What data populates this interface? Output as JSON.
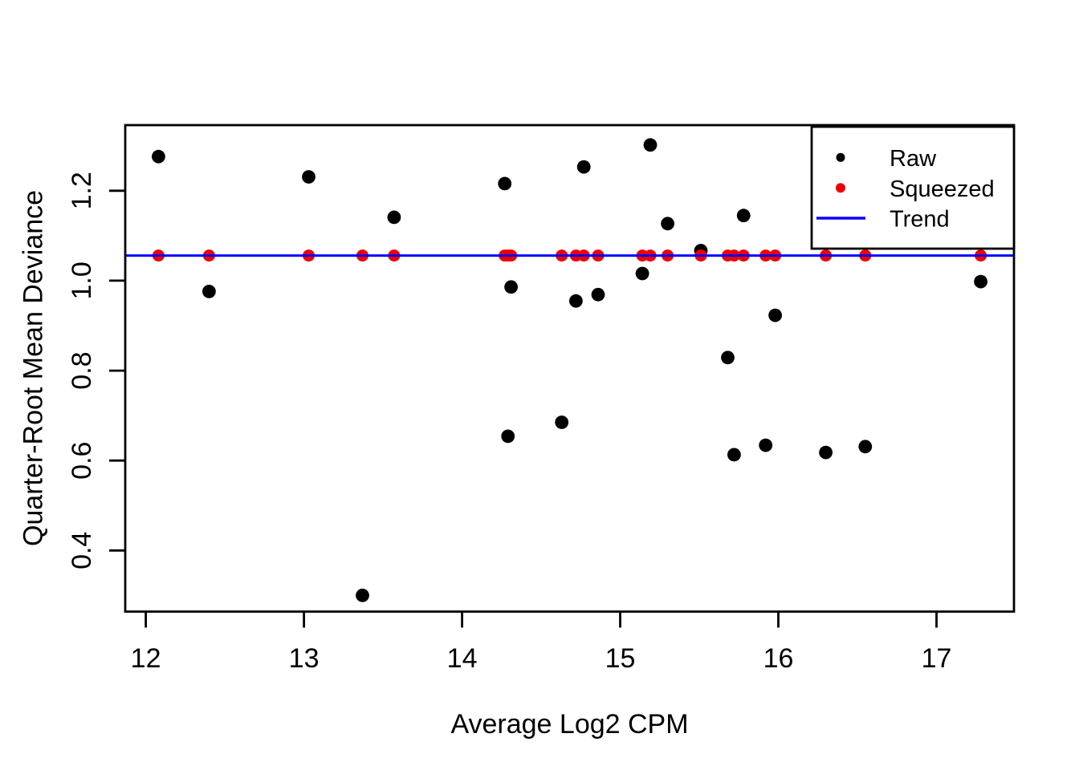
{
  "chart_data": {
    "type": "scatter",
    "title": "",
    "xlabel": "Average Log2 CPM",
    "ylabel": "Quarter-Root Mean Deviance",
    "xlim": [
      11.87,
      17.49
    ],
    "ylim": [
      0.264,
      1.346
    ],
    "x_ticks": [
      12,
      13,
      14,
      15,
      16,
      17
    ],
    "y_ticks": [
      0.4,
      0.6,
      0.8,
      1.0,
      1.2
    ],
    "x_tick_labels": [
      "12",
      "13",
      "14",
      "15",
      "16",
      "17"
    ],
    "y_tick_labels": [
      "0.4",
      "0.6",
      "0.8",
      "1.0",
      "1.2"
    ],
    "grid": false,
    "x": [
      12.08,
      12.4,
      13.03,
      13.37,
      13.57,
      14.27,
      14.29,
      14.31,
      14.63,
      14.72,
      14.77,
      14.86,
      15.14,
      15.19,
      15.3,
      15.51,
      15.68,
      15.72,
      15.78,
      15.92,
      15.98,
      16.3,
      16.55,
      17.28
    ],
    "series": [
      {
        "name": "Raw",
        "color": "#000000",
        "marker_radius": 8.4,
        "values": [
          1.276,
          0.976,
          1.231,
          0.3,
          1.141,
          1.216,
          0.654,
          0.986,
          0.685,
          0.955,
          1.253,
          0.969,
          1.016,
          1.302,
          1.127,
          1.067,
          0.829,
          0.613,
          1.145,
          0.634,
          0.923,
          0.618,
          0.631,
          0.998
        ]
      },
      {
        "name": "Squeezed",
        "color": "#EE0000",
        "marker_radius": 7.5,
        "values": [
          1.056,
          1.056,
          1.056,
          1.056,
          1.056,
          1.056,
          1.056,
          1.056,
          1.056,
          1.056,
          1.056,
          1.056,
          1.056,
          1.056,
          1.056,
          1.056,
          1.056,
          1.056,
          1.056,
          1.056,
          1.056,
          1.056,
          1.056,
          1.056
        ]
      }
    ],
    "trend": {
      "label": "Trend",
      "y": 1.056,
      "color": "#0000FF"
    },
    "legend": {
      "position": "top-right",
      "items": [
        {
          "label": "Raw",
          "marker": "dot",
          "color": "#000000",
          "marker_radius": 5.5
        },
        {
          "label": "Squeezed",
          "marker": "dot",
          "color": "#EE0000",
          "marker_radius": 6.0
        },
        {
          "label": "Trend",
          "marker": "line",
          "color": "#0000FF",
          "marker_radius": 0
        }
      ]
    },
    "colors": {
      "axis": "#000000",
      "background": "#FFFFFF"
    }
  }
}
